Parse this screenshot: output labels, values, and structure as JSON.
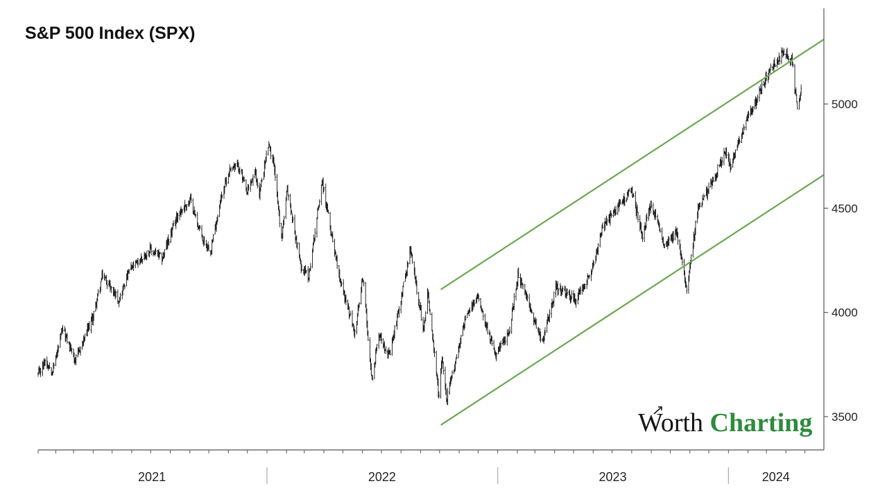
{
  "chart_data": {
    "type": "candlestick",
    "title": "S&P 500 Index (SPX)",
    "xlabel": "",
    "ylabel": "",
    "ylim": [
      3320,
      5480
    ],
    "y_axis_position": "right",
    "yticks": [
      3500,
      4000,
      4500,
      5000
    ],
    "xlim": [
      "2021-01-04",
      "2024-05-31"
    ],
    "year_labels": [
      {
        "label": "2021",
        "start": "2021-01-01",
        "end": "2021-12-31"
      },
      {
        "label": "2022",
        "start": "2022-01-01",
        "end": "2022-12-31"
      },
      {
        "label": "2023",
        "start": "2023-01-01",
        "end": "2023-12-31"
      },
      {
        "label": "2024",
        "start": "2024-01-01",
        "end": "2024-05-31"
      }
    ],
    "series": [
      {
        "type": "price",
        "points": [
          {
            "x": "2021-01-04",
            "y": 3700
          },
          {
            "x": "2021-01-15",
            "y": 3770
          },
          {
            "x": "2021-01-27",
            "y": 3720
          },
          {
            "x": "2021-02-12",
            "y": 3920
          },
          {
            "x": "2021-03-04",
            "y": 3770
          },
          {
            "x": "2021-03-31",
            "y": 3970
          },
          {
            "x": "2021-04-16",
            "y": 4180
          },
          {
            "x": "2021-05-12",
            "y": 4060
          },
          {
            "x": "2021-05-28",
            "y": 4200
          },
          {
            "x": "2021-06-30",
            "y": 4300
          },
          {
            "x": "2021-07-19",
            "y": 4260
          },
          {
            "x": "2021-08-13",
            "y": 4470
          },
          {
            "x": "2021-09-02",
            "y": 4540
          },
          {
            "x": "2021-09-21",
            "y": 4350
          },
          {
            "x": "2021-10-04",
            "y": 4300
          },
          {
            "x": "2021-10-21",
            "y": 4560
          },
          {
            "x": "2021-11-05",
            "y": 4700
          },
          {
            "x": "2021-11-18",
            "y": 4700
          },
          {
            "x": "2021-11-30",
            "y": 4570
          },
          {
            "x": "2021-12-13",
            "y": 4670
          },
          {
            "x": "2021-12-20",
            "y": 4570
          },
          {
            "x": "2022-01-03",
            "y": 4800
          },
          {
            "x": "2022-01-12",
            "y": 4720
          },
          {
            "x": "2022-01-24",
            "y": 4350
          },
          {
            "x": "2022-02-02",
            "y": 4590
          },
          {
            "x": "2022-02-23",
            "y": 4230
          },
          {
            "x": "2022-03-08",
            "y": 4170
          },
          {
            "x": "2022-03-29",
            "y": 4630
          },
          {
            "x": "2022-04-11",
            "y": 4410
          },
          {
            "x": "2022-04-29",
            "y": 4130
          },
          {
            "x": "2022-05-20",
            "y": 3900
          },
          {
            "x": "2022-06-02",
            "y": 4170
          },
          {
            "x": "2022-06-16",
            "y": 3670
          },
          {
            "x": "2022-06-27",
            "y": 3900
          },
          {
            "x": "2022-07-14",
            "y": 3790
          },
          {
            "x": "2022-08-16",
            "y": 4300
          },
          {
            "x": "2022-09-06",
            "y": 3910
          },
          {
            "x": "2022-09-12",
            "y": 4110
          },
          {
            "x": "2022-09-30",
            "y": 3590
          },
          {
            "x": "2022-10-05",
            "y": 3790
          },
          {
            "x": "2022-10-12",
            "y": 3580
          },
          {
            "x": "2022-11-10",
            "y": 3960
          },
          {
            "x": "2022-12-01",
            "y": 4080
          },
          {
            "x": "2022-12-28",
            "y": 3790
          },
          {
            "x": "2023-01-19",
            "y": 3900
          },
          {
            "x": "2023-02-02",
            "y": 4180
          },
          {
            "x": "2023-03-13",
            "y": 3860
          },
          {
            "x": "2023-04-03",
            "y": 4120
          },
          {
            "x": "2023-05-04",
            "y": 4060
          },
          {
            "x": "2023-06-01",
            "y": 4220
          },
          {
            "x": "2023-06-16",
            "y": 4410
          },
          {
            "x": "2023-07-31",
            "y": 4590
          },
          {
            "x": "2023-08-18",
            "y": 4370
          },
          {
            "x": "2023-09-01",
            "y": 4520
          },
          {
            "x": "2023-09-21",
            "y": 4330
          },
          {
            "x": "2023-10-11",
            "y": 4380
          },
          {
            "x": "2023-10-27",
            "y": 4120
          },
          {
            "x": "2023-11-14",
            "y": 4500
          },
          {
            "x": "2023-12-01",
            "y": 4590
          },
          {
            "x": "2023-12-28",
            "y": 4780
          },
          {
            "x": "2024-01-04",
            "y": 4690
          },
          {
            "x": "2024-01-23",
            "y": 4870
          },
          {
            "x": "2024-02-15",
            "y": 5030
          },
          {
            "x": "2024-03-07",
            "y": 5160
          },
          {
            "x": "2024-03-28",
            "y": 5250
          },
          {
            "x": "2024-04-11",
            "y": 5200
          },
          {
            "x": "2024-04-19",
            "y": 4970
          },
          {
            "x": "2024-04-26",
            "y": 5090
          }
        ]
      },
      {
        "type": "trendline",
        "color": "#6aa84f",
        "points": [
          {
            "x": "2022-10-03",
            "y": 4110
          },
          {
            "x": "2024-05-31",
            "y": 5310
          }
        ]
      },
      {
        "type": "trendline",
        "color": "#6aa84f",
        "points": [
          {
            "x": "2022-10-03",
            "y": 3460
          },
          {
            "x": "2024-05-31",
            "y": 4660
          }
        ]
      }
    ],
    "grid": false,
    "legend": "none",
    "colors": {
      "bars": "#111111",
      "channel": "#6aa84f",
      "axis": "#555555"
    }
  },
  "logo": {
    "word1": "Worth",
    "word2": "Charting",
    "color1": "#151515",
    "color2": "#2e8b3e"
  }
}
